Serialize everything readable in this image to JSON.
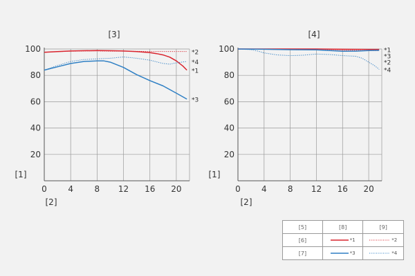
{
  "colors": {
    "red": "#d9232d",
    "blue": "#2e7fc4",
    "grid": "#999999",
    "background": "#f2f2f2"
  },
  "chart_data": [
    {
      "type": "line",
      "title": "[3]",
      "ylabel": "[1]",
      "xlabel": "[2]",
      "xlim": [
        0,
        22
      ],
      "ylim": [
        0,
        100
      ],
      "xticks": [
        0,
        4,
        8,
        12,
        16,
        20
      ],
      "yticks": [
        20,
        40,
        60,
        80,
        100
      ],
      "grid": true,
      "series": [
        {
          "name": "*1",
          "color": "red",
          "style": "solid",
          "x": [
            0,
            2,
            4,
            6,
            8,
            10,
            12,
            14,
            16,
            17,
            18,
            19,
            20,
            21,
            21.6
          ],
          "y": [
            97.5,
            98,
            98.5,
            98.7,
            98.8,
            98.7,
            98.5,
            98,
            97.2,
            96.5,
            95.5,
            93.8,
            91,
            87,
            84
          ]
        },
        {
          "name": "*2",
          "color": "red",
          "style": "dotted",
          "x": [
            0,
            2,
            4,
            6,
            8,
            10,
            12,
            14,
            16,
            18,
            20,
            21.6
          ],
          "y": [
            97.5,
            98,
            98.3,
            98.5,
            98.5,
            98.4,
            98.3,
            98.2,
            98.1,
            98.1,
            98.1,
            98.1
          ]
        },
        {
          "name": "*3",
          "color": "blue",
          "style": "solid",
          "x": [
            0,
            2,
            4,
            6,
            8,
            9,
            10,
            12,
            14,
            16,
            18,
            20,
            21.6
          ],
          "y": [
            84,
            86.5,
            89,
            90.5,
            91,
            91,
            90,
            86,
            80.5,
            76,
            72,
            66.5,
            62
          ]
        },
        {
          "name": "*4",
          "color": "blue",
          "style": "dotted",
          "x": [
            0,
            2,
            4,
            6,
            8,
            10,
            12,
            14,
            16,
            18,
            19,
            20,
            21.6
          ],
          "y": [
            84,
            87.5,
            90.5,
            92,
            92.5,
            93,
            94,
            93,
            91.5,
            89,
            88.5,
            89.5,
            90.5
          ]
        }
      ],
      "end_labels": [
        "*2",
        "*4",
        "*1",
        "*3"
      ]
    },
    {
      "type": "line",
      "title": "[4]",
      "ylabel": "[1]",
      "xlabel": "[2]",
      "xlim": [
        0,
        22
      ],
      "ylim": [
        0,
        100
      ],
      "xticks": [
        0,
        4,
        8,
        12,
        16,
        20
      ],
      "yticks": [
        20,
        40,
        60,
        80,
        100
      ],
      "grid": true,
      "series": [
        {
          "name": "*1",
          "color": "red",
          "style": "solid",
          "x": [
            0,
            4,
            8,
            12,
            16,
            20,
            21.6
          ],
          "y": [
            100,
            100,
            100,
            100,
            99.8,
            99.7,
            99.7
          ]
        },
        {
          "name": "*2",
          "color": "red",
          "style": "dotted",
          "x": [
            0,
            4,
            8,
            12,
            16,
            20,
            21.6
          ],
          "y": [
            100,
            99.8,
            99.5,
            99.3,
            99,
            98.8,
            98.7
          ]
        },
        {
          "name": "*3",
          "color": "blue",
          "style": "solid",
          "x": [
            0,
            4,
            8,
            12,
            14,
            16,
            18,
            20,
            21.6
          ],
          "y": [
            100,
            99.8,
            99.5,
            99.3,
            98.8,
            98.3,
            98.4,
            98.8,
            99
          ]
        },
        {
          "name": "*4",
          "color": "blue",
          "style": "dotted",
          "x": [
            0,
            2,
            3,
            4,
            6,
            8,
            10,
            12,
            14,
            16,
            18,
            19,
            20,
            21,
            21.6
          ],
          "y": [
            100,
            99.5,
            98.5,
            97,
            95.5,
            95,
            95.3,
            96.2,
            95.8,
            95,
            94.5,
            93,
            90,
            87,
            84.5
          ]
        }
      ],
      "end_labels": [
        "*1",
        "*3",
        "*2",
        "*4"
      ]
    }
  ],
  "legend": {
    "header": [
      "[5]",
      "[8]",
      "[9]"
    ],
    "rows": [
      {
        "label": "[6]",
        "solid_mark": "*1",
        "dotted_mark": "*2",
        "color": "red"
      },
      {
        "label": "[7]",
        "solid_mark": "*3",
        "dotted_mark": "*4",
        "color": "blue"
      }
    ]
  }
}
